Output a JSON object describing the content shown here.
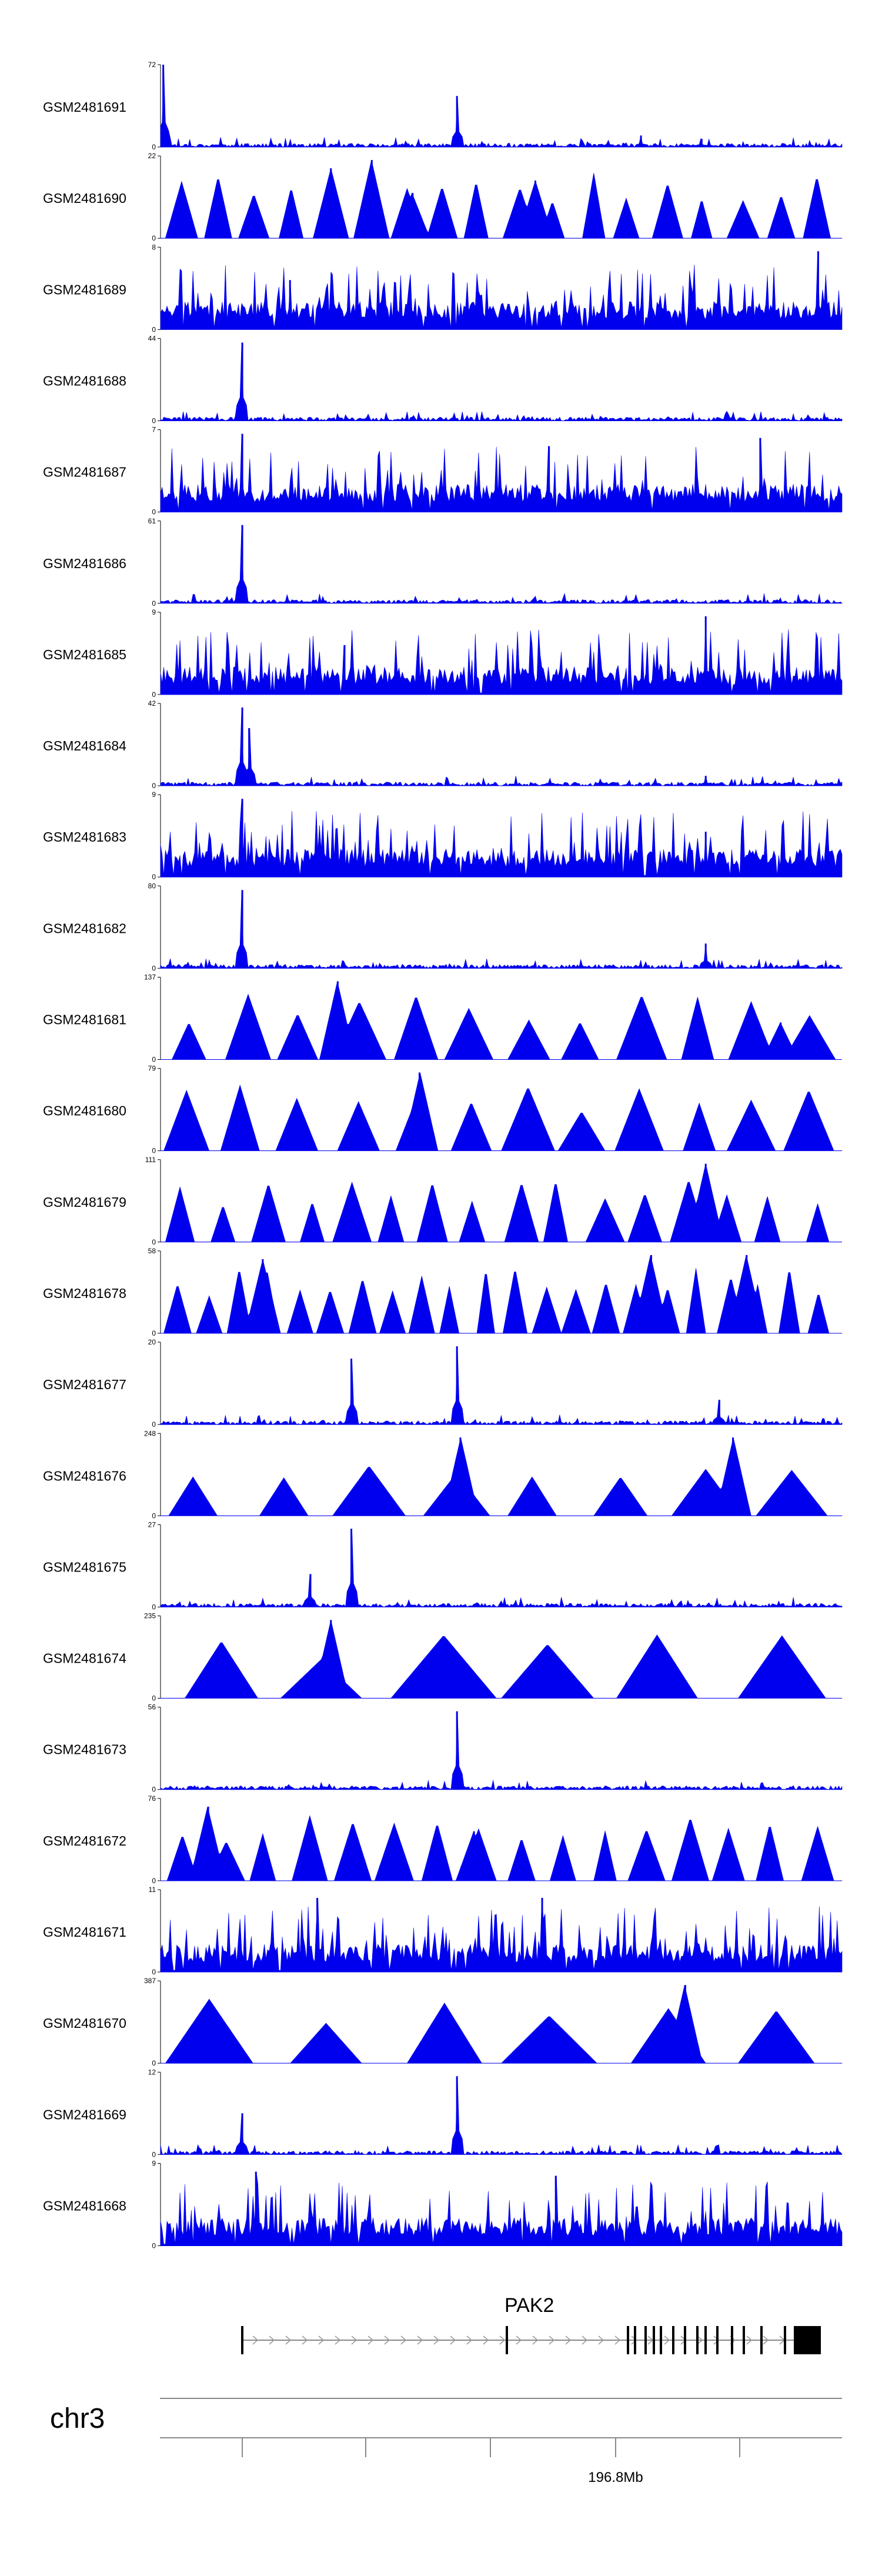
{
  "chart_data": {
    "type": "area",
    "tracks": [
      {
        "name": "GSM2481691",
        "ymax": 72,
        "ymin": 0,
        "pattern": "sparse",
        "peaks": [
          [
            0.004,
            1.0
          ],
          [
            0.435,
            0.62
          ],
          [
            0.705,
            0.14
          ],
          [
            0.794,
            0.1
          ]
        ]
      },
      {
        "name": "GSM2481690",
        "ymax": 22,
        "ymin": 0,
        "pattern": "tri",
        "count": 18,
        "peaks": [
          [
            0.25,
            0.85
          ],
          [
            0.31,
            0.95
          ],
          [
            0.55,
            0.7
          ],
          [
            0.37,
            0.55
          ]
        ]
      },
      {
        "name": "GSM2481689",
        "ymax": 8,
        "ymin": 0,
        "pattern": "dense",
        "peaks": [
          [
            0.965,
            0.95
          ],
          [
            0.19,
            0.6
          ]
        ]
      },
      {
        "name": "GSM2481688",
        "ymax": 44,
        "ymin": 0,
        "pattern": "sparse",
        "peaks": [
          [
            0.12,
            0.95
          ]
        ]
      },
      {
        "name": "GSM2481687",
        "ymax": 7,
        "ymin": 0,
        "pattern": "dense",
        "peaks": [
          [
            0.12,
            0.95
          ],
          [
            0.88,
            0.9
          ],
          [
            0.57,
            0.8
          ]
        ]
      },
      {
        "name": "GSM2481686",
        "ymax": 61,
        "ymin": 0,
        "pattern": "sparse",
        "peaks": [
          [
            0.12,
            0.95
          ]
        ]
      },
      {
        "name": "GSM2481685",
        "ymax": 9,
        "ymin": 0,
        "pattern": "dense",
        "peaks": [
          [
            0.8,
            0.95
          ],
          [
            0.27,
            0.6
          ]
        ]
      },
      {
        "name": "GSM2481684",
        "ymax": 42,
        "ymin": 0,
        "pattern": "sparse",
        "peaks": [
          [
            0.12,
            0.95
          ],
          [
            0.13,
            0.7
          ],
          [
            0.8,
            0.12
          ]
        ]
      },
      {
        "name": "GSM2481683",
        "ymax": 9,
        "ymin": 0,
        "pattern": "dense",
        "peaks": [
          [
            0.12,
            0.95
          ],
          [
            0.8,
            0.55
          ]
        ]
      },
      {
        "name": "GSM2481682",
        "ymax": 80,
        "ymin": 0,
        "pattern": "sparse",
        "peaks": [
          [
            0.12,
            0.95
          ],
          [
            0.8,
            0.3
          ]
        ]
      },
      {
        "name": "GSM2481681",
        "ymax": 137,
        "ymin": 0,
        "pattern": "tri",
        "count": 12,
        "peaks": [
          [
            0.26,
            0.95
          ],
          [
            0.91,
            0.45
          ]
        ]
      },
      {
        "name": "GSM2481680",
        "ymax": 79,
        "ymin": 0,
        "pattern": "tri",
        "count": 12,
        "peaks": [
          [
            0.38,
            0.95
          ]
        ]
      },
      {
        "name": "GSM2481679",
        "ymax": 111,
        "ymin": 0,
        "pattern": "tri",
        "count": 16,
        "peaks": [
          [
            0.8,
            0.95
          ],
          [
            0.28,
            0.6
          ]
        ]
      },
      {
        "name": "GSM2481678",
        "ymax": 58,
        "ymin": 0,
        "pattern": "tri",
        "count": 22,
        "peaks": [
          [
            0.72,
            0.95
          ],
          [
            0.86,
            0.95
          ],
          [
            0.15,
            0.9
          ]
        ]
      },
      {
        "name": "GSM2481677",
        "ymax": 20,
        "ymin": 0,
        "pattern": "sparse",
        "peaks": [
          [
            0.28,
            0.8
          ],
          [
            0.435,
            0.95
          ],
          [
            0.82,
            0.3
          ]
        ]
      },
      {
        "name": "GSM2481676",
        "ymax": 248,
        "ymin": 0,
        "pattern": "tri",
        "count": 8,
        "peaks": [
          [
            0.84,
            0.95
          ],
          [
            0.44,
            0.95
          ]
        ]
      },
      {
        "name": "GSM2481675",
        "ymax": 27,
        "ymin": 0,
        "pattern": "sparse",
        "peaks": [
          [
            0.28,
            0.95
          ],
          [
            0.22,
            0.4
          ]
        ]
      },
      {
        "name": "GSM2481674",
        "ymax": 235,
        "ymin": 0,
        "pattern": "tri",
        "count": 6,
        "peaks": [
          [
            0.25,
            0.95
          ]
        ]
      },
      {
        "name": "GSM2481673",
        "ymax": 56,
        "ymin": 0,
        "pattern": "sparse",
        "peaks": [
          [
            0.435,
            0.95
          ]
        ]
      },
      {
        "name": "GSM2481672",
        "ymax": 76,
        "ymin": 0,
        "pattern": "tri",
        "count": 16,
        "peaks": [
          [
            0.07,
            0.9
          ],
          [
            0.46,
            0.6
          ]
        ]
      },
      {
        "name": "GSM2481671",
        "ymax": 11,
        "ymin": 0,
        "pattern": "dense",
        "peaks": [
          [
            0.23,
            0.9
          ],
          [
            0.56,
            0.9
          ]
        ]
      },
      {
        "name": "GSM2481670",
        "ymax": 387,
        "ymin": 0,
        "pattern": "tri",
        "count": 6,
        "peaks": [
          [
            0.77,
            0.95
          ]
        ]
      },
      {
        "name": "GSM2481669",
        "ymax": 12,
        "ymin": 0,
        "pattern": "sparse",
        "peaks": [
          [
            0.435,
            0.95
          ],
          [
            0.12,
            0.5
          ]
        ]
      },
      {
        "name": "GSM2481668",
        "ymax": 9,
        "ymin": 0,
        "pattern": "dense",
        "peaks": [
          [
            0.14,
            0.9
          ],
          [
            0.58,
            0.85
          ]
        ]
      }
    ],
    "gene": {
      "name": "PAK2",
      "strand": "+"
    },
    "chromosome": "chr3",
    "coordinate_label": "196.8Mb",
    "color": "#0000ee"
  }
}
